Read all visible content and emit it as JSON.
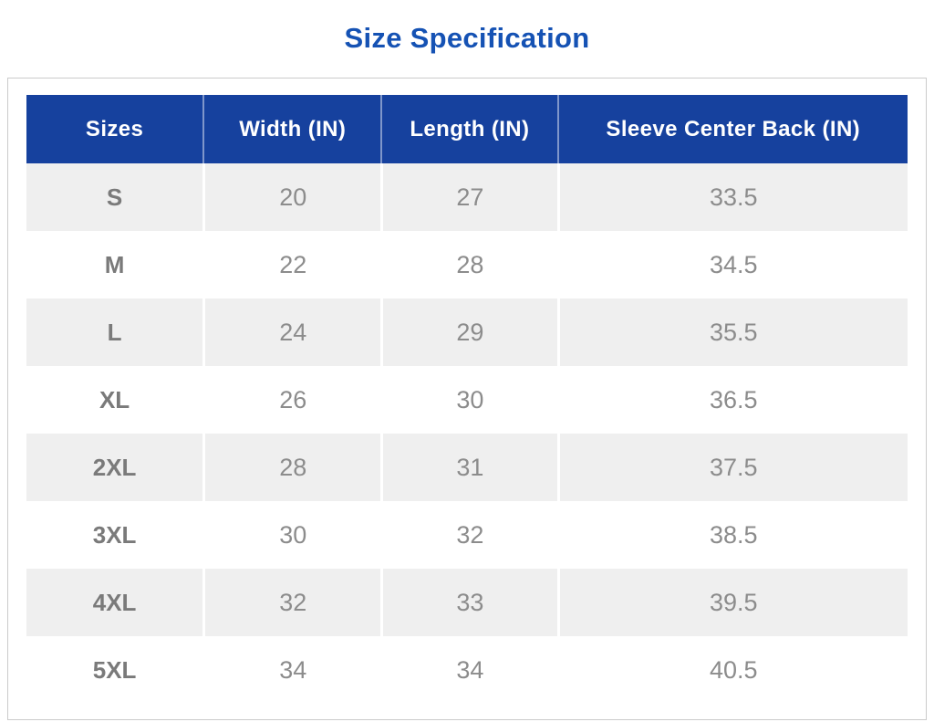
{
  "page": {
    "title": "Size Specification"
  },
  "colors": {
    "title_blue": "#1552b4",
    "header_blue": "#16419e",
    "header_text": "#ffffff",
    "row_alt_bg": "#efefef",
    "row_bg": "#ffffff",
    "number_text": "#8c8c8c",
    "size_label_text": "#7a7a7a",
    "card_border": "#cbcbcb"
  },
  "table": {
    "columns": [
      "Sizes",
      "Width (IN)",
      "Length (IN)",
      "Sleeve Center Back (IN)"
    ],
    "column_widths_percent": [
      20,
      20.2,
      20,
      39.8
    ],
    "rows": [
      [
        "S",
        "20",
        "27",
        "33.5"
      ],
      [
        "M",
        "22",
        "28",
        "34.5"
      ],
      [
        "L",
        "24",
        "29",
        "35.5"
      ],
      [
        "XL",
        "26",
        "30",
        "36.5"
      ],
      [
        "2XL",
        "28",
        "31",
        "37.5"
      ],
      [
        "3XL",
        "30",
        "32",
        "38.5"
      ],
      [
        "4XL",
        "32",
        "33",
        "39.5"
      ],
      [
        "5XL",
        "34",
        "34",
        "40.5"
      ]
    ]
  },
  "chart_data": {
    "type": "table",
    "title": "Size Specification",
    "columns": [
      "Sizes",
      "Width (IN)",
      "Length (IN)",
      "Sleeve Center Back (IN)"
    ],
    "rows": [
      [
        "S",
        20,
        27,
        33.5
      ],
      [
        "M",
        22,
        28,
        34.5
      ],
      [
        "L",
        24,
        29,
        35.5
      ],
      [
        "XL",
        26,
        30,
        36.5
      ],
      [
        "2XL",
        28,
        31,
        37.5
      ],
      [
        "3XL",
        30,
        32,
        38.5
      ],
      [
        "4XL",
        32,
        33,
        39.5
      ],
      [
        "5XL",
        34,
        34,
        40.5
      ]
    ]
  }
}
